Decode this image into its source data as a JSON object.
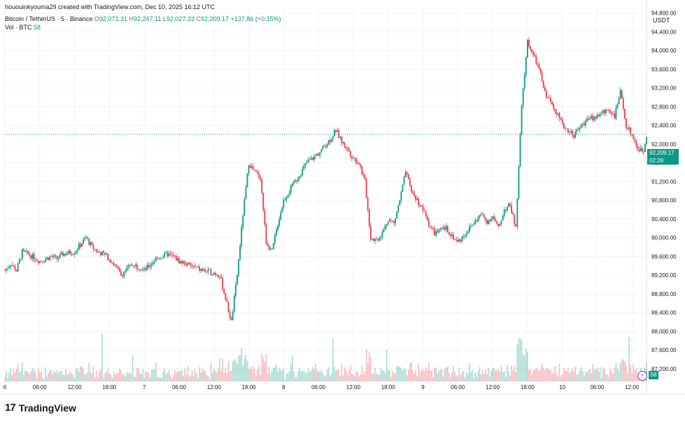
{
  "caption": "hououinkyouma29 created with TradingView.com, Dec 10, 2025 16:12 UTC",
  "legend": {
    "symbol": "Bitcoin / TetherUS · 5 · Binance",
    "o_label": "O",
    "o": "92,071.31",
    "h_label": "H",
    "h": "92,247.11",
    "l_label": "L",
    "l": "92,027.33",
    "c_label": "C",
    "c": "92,209.17",
    "change": "+137.86 (+0.15%)",
    "vol_label": "Vol · BTC",
    "vol": "58"
  },
  "currency": "USDT",
  "price_tag": {
    "price": "92,209.17",
    "countdown": "02:28"
  },
  "vol_tag": "58",
  "brand": "TradingView",
  "colors": {
    "up": "#089981",
    "down": "#f23645",
    "grid": "#f0f3fa",
    "axis_text": "#131722"
  },
  "chart_data": {
    "type": "candlestick",
    "title": "Bitcoin / TetherUS · 5 · Binance",
    "ylim": [
      86900,
      94900
    ],
    "y_ticks": [
      87200,
      87600,
      88000,
      88400,
      88800,
      89200,
      89600,
      90000,
      90400,
      90800,
      91200,
      91600,
      92000,
      92400,
      92800,
      93200,
      93600,
      94000,
      94400,
      94800
    ],
    "y_tick_labels": [
      "87,200.00",
      "87,600.00",
      "88,000.00",
      "88,400.00",
      "88,800.00",
      "89,200.00",
      "89,600.00",
      "90,000.00",
      "90,400.00",
      "90,800.00",
      "91,200.00",
      "91,600.00",
      "92,000.00",
      "92,400.00",
      "92,800.00",
      "93,200.00",
      "93,600.00",
      "94,000.00",
      "94,400.00",
      "94,800.00"
    ],
    "x_range_hours": [
      0,
      110.5
    ],
    "x_ticks": [
      {
        "h": 0,
        "label": "6"
      },
      {
        "h": 6,
        "label": "06:00"
      },
      {
        "h": 12,
        "label": "12:00"
      },
      {
        "h": 18,
        "label": "18:00"
      },
      {
        "h": 24,
        "label": "7"
      },
      {
        "h": 30,
        "label": "06:00"
      },
      {
        "h": 36,
        "label": "12:00"
      },
      {
        "h": 42,
        "label": "18:00"
      },
      {
        "h": 48,
        "label": "8"
      },
      {
        "h": 54,
        "label": "06:00"
      },
      {
        "h": 60,
        "label": "12:00"
      },
      {
        "h": 66,
        "label": "18:00"
      },
      {
        "h": 72,
        "label": "9"
      },
      {
        "h": 78,
        "label": "06:00"
      },
      {
        "h": 84,
        "label": "12:00"
      },
      {
        "h": 90,
        "label": "18:00"
      },
      {
        "h": 96,
        "label": "10"
      },
      {
        "h": 102,
        "label": "06:00"
      },
      {
        "h": 108,
        "label": "12:00"
      }
    ],
    "last_price": 92209.17,
    "path_hours": [
      0,
      1,
      2,
      3,
      4,
      6,
      8,
      9,
      10,
      12,
      14,
      15,
      16,
      17,
      18,
      19,
      20,
      22,
      24,
      26,
      28,
      29,
      30,
      32,
      34,
      36,
      37,
      38,
      39,
      40,
      41,
      42,
      43,
      44,
      45,
      46,
      47,
      48,
      50,
      52,
      54,
      56,
      57,
      58,
      59,
      60,
      61,
      62,
      63,
      64,
      65,
      66,
      67,
      68,
      69,
      70,
      71,
      72,
      73,
      74,
      76,
      78,
      80,
      82,
      83,
      84,
      85,
      86,
      87,
      88,
      89,
      90,
      91,
      92,
      93,
      94,
      95,
      96,
      97,
      98,
      100,
      102,
      104,
      105,
      106,
      107,
      108,
      109,
      110,
      110.5
    ],
    "path_prices": [
      89300,
      89450,
      89300,
      89700,
      89650,
      89500,
      89600,
      89550,
      89650,
      89700,
      90000,
      89800,
      89700,
      89650,
      89550,
      89400,
      89200,
      89450,
      89300,
      89550,
      89650,
      89600,
      89500,
      89400,
      89300,
      89250,
      89200,
      88700,
      88200,
      89200,
      90500,
      91600,
      91400,
      91300,
      89900,
      89700,
      90300,
      90800,
      91200,
      91600,
      91800,
      92100,
      92300,
      92050,
      91900,
      91700,
      91600,
      91200,
      90000,
      89950,
      90100,
      90400,
      90300,
      90800,
      91400,
      91000,
      90800,
      90600,
      90300,
      90100,
      90200,
      89900,
      90200,
      90500,
      90350,
      90450,
      90200,
      90600,
      90700,
      90200,
      92800,
      94200,
      93900,
      93600,
      93100,
      92900,
      92700,
      92400,
      92300,
      92200,
      92500,
      92600,
      92750,
      92600,
      93100,
      92400,
      92200,
      91900,
      91850,
      92209
    ]
  }
}
